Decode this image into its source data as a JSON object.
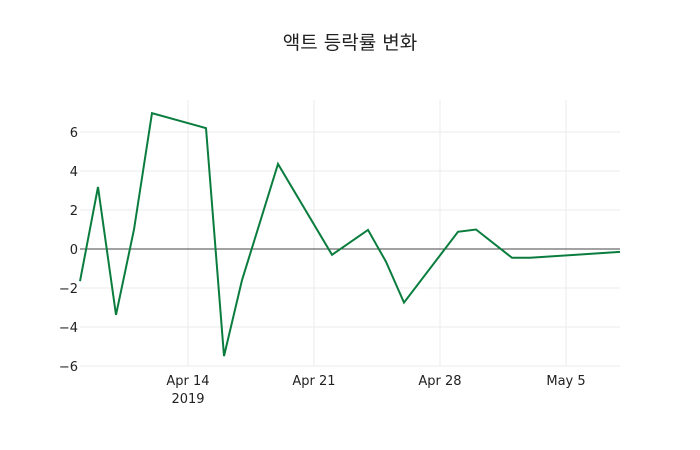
{
  "chart_data": {
    "type": "line",
    "title": "액트 등락률 변화",
    "xlabel": "",
    "ylabel": "",
    "x": [
      "2019-04-08",
      "2019-04-09",
      "2019-04-10",
      "2019-04-11",
      "2019-04-12",
      "2019-04-15",
      "2019-04-16",
      "2019-04-17",
      "2019-04-19",
      "2019-04-22",
      "2019-04-24",
      "2019-04-25",
      "2019-04-26",
      "2019-04-29",
      "2019-04-30",
      "2019-05-02",
      "2019-05-03",
      "2019-05-08"
    ],
    "series": [
      {
        "name": "등락률",
        "color": "#0a7d3e",
        "values": [
          -1.65,
          3.18,
          -3.38,
          1.0,
          6.97,
          6.2,
          -5.49,
          -1.6,
          4.36,
          -0.3,
          0.98,
          -0.65,
          -2.75,
          0.88,
          1.0,
          -0.45,
          -0.45,
          -0.15
        ]
      }
    ],
    "ylim": [
      -6,
      7.6
    ],
    "xlim": [
      "2019-04-08",
      "2019-05-08"
    ],
    "y_ticks": [
      "6",
      "4",
      "2",
      "0",
      "−2",
      "−4",
      "−6"
    ],
    "y_tick_values": [
      6,
      4,
      2,
      0,
      -2,
      -4,
      -6
    ],
    "x_ticks": [
      {
        "label": "Apr 14",
        "sub": "2019",
        "date": "2019-04-14"
      },
      {
        "label": "Apr 21",
        "sub": "",
        "date": "2019-04-21"
      },
      {
        "label": "Apr 28",
        "sub": "",
        "date": "2019-04-28"
      },
      {
        "label": "May 5",
        "sub": "",
        "date": "2019-05-05"
      }
    ],
    "grid": true,
    "legend": false
  }
}
